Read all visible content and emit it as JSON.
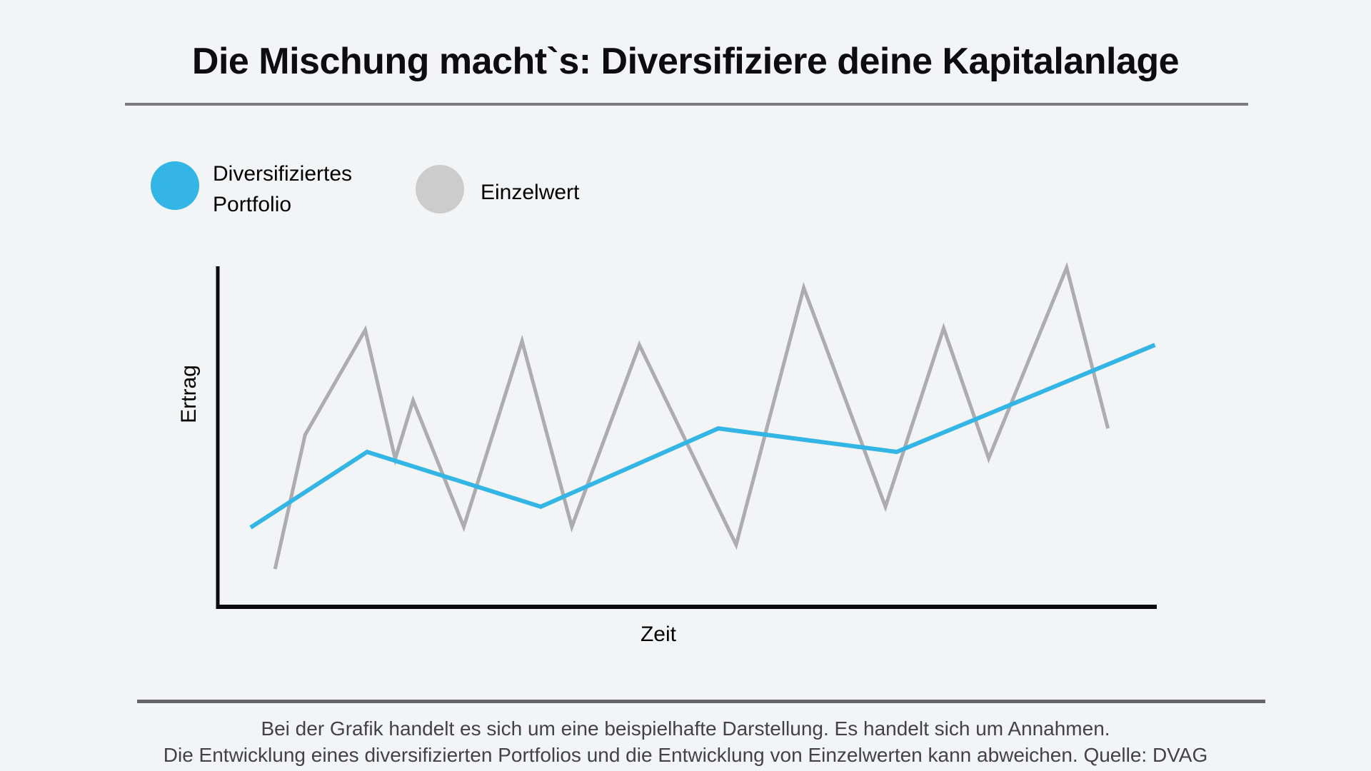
{
  "page": {
    "title": "Die Mischung macht`s: Diversifiziere deine Kapitalanlage",
    "background_color": "#f3f4f6",
    "title_color": "#0d0d0f",
    "title_divider_color": "#7b7b7f",
    "footer_divider_color": "#67676b",
    "footer_text_color": "#434347"
  },
  "legend": {
    "items": [
      {
        "label": "Diversifiziertes Portfolio",
        "color": "#33b6e5"
      },
      {
        "label": "Einzelwert",
        "color": "#cccccd"
      }
    ]
  },
  "chart_data": {
    "type": "line",
    "title": "",
    "xlabel": "Zeit",
    "ylabel": "Ertrag",
    "xlim": [
      0,
      100
    ],
    "ylim": [
      0,
      100
    ],
    "grid": false,
    "axis_ticks": "none",
    "axis_color": "#0b0b0d",
    "legend_position": "top-left",
    "note": "no numeric tick labels shown; values are relative (0-100) estimates of Ertrag over Zeit",
    "series": [
      {
        "name": "Diversifiziertes Portfolio",
        "color": "#33b6e5",
        "points": [
          [
            3.5,
            23.3
          ],
          [
            15.9,
            45.5
          ],
          [
            34.4,
            29.4
          ],
          [
            53.3,
            52.4
          ],
          [
            72.3,
            45.5
          ],
          [
            99.8,
            76.9
          ]
        ]
      },
      {
        "name": "Einzelwert",
        "color": "#adadaf",
        "points": [
          [
            6.1,
            11.1
          ],
          [
            9.3,
            50.5
          ],
          [
            15.7,
            81.3
          ],
          [
            18.9,
            43.4
          ],
          [
            20.8,
            60.6
          ],
          [
            26.2,
            23.5
          ],
          [
            32.4,
            78.0
          ],
          [
            37.7,
            23.5
          ],
          [
            44.9,
            76.9
          ],
          [
            55.2,
            18.2
          ],
          [
            62.4,
            93.7
          ],
          [
            71.1,
            29.4
          ],
          [
            77.3,
            81.8
          ],
          [
            82.1,
            43.6
          ],
          [
            90.4,
            99.6
          ],
          [
            94.8,
            52.4
          ]
        ]
      }
    ]
  },
  "footer": {
    "line1": "Bei der Grafik handelt es sich um eine beispielhafte Darstellung. Es handelt sich um Annahmen.",
    "line2": "Die Entwicklung eines diversifizierten Portfolios und die Entwicklung von Einzelwerten kann abweichen. Quelle: DVAG"
  }
}
